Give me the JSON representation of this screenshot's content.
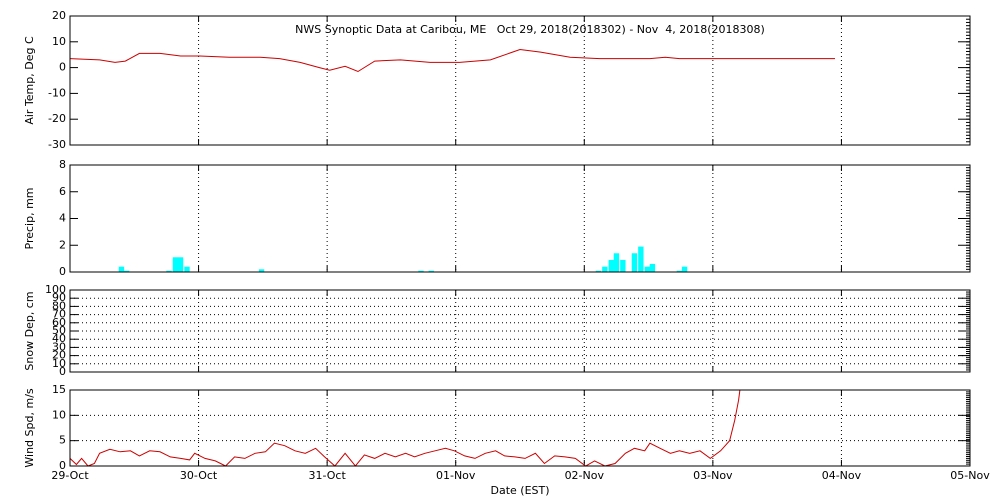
{
  "chart_data": [
    {
      "type": "line",
      "title": "NWS Synoptic Data at Caribou, ME   Oct 29, 2018(2018302) - Nov  4, 2018(2018308)",
      "ylabel": "Air Temp, Deg C",
      "color": "#cc0000",
      "x": [
        0,
        0.23,
        0.35,
        0.43,
        0.54,
        0.7,
        0.86,
        1.01,
        1.24,
        1.48,
        1.63,
        1.79,
        1.94,
        2.02,
        2.14,
        2.24,
        2.37,
        2.57,
        2.8,
        3.03,
        3.27,
        3.5,
        3.66,
        3.89,
        4.12,
        4.51,
        4.63,
        4.74,
        5.06,
        5.95
      ],
      "values": [
        3.5,
        3,
        2,
        2.5,
        5.5,
        5.5,
        4.5,
        4.5,
        4,
        4,
        3.5,
        2,
        0,
        -1,
        0.5,
        -1.5,
        2.5,
        3,
        2,
        2,
        3,
        7,
        6,
        4,
        3.5,
        3.5,
        4,
        3.5,
        3.5,
        3.5
      ],
      "xlim": [
        0,
        7
      ],
      "xticks": [
        0,
        1,
        2,
        3,
        4,
        5,
        6,
        7
      ],
      "ylim": [
        -30,
        20
      ],
      "yticks": [
        -30,
        -20,
        -10,
        0,
        10,
        20
      ],
      "ygrid": false
    },
    {
      "type": "bar",
      "ylabel": "Precip, mm",
      "color": "#00ffff",
      "x": [
        0.4,
        0.44,
        0.77,
        0.82,
        0.86,
        0.91,
        1.49,
        2.73,
        2.81,
        4.11,
        4.16,
        4.21,
        4.25,
        4.3,
        4.39,
        4.44,
        4.49,
        4.53,
        4.74,
        4.78
      ],
      "values": [
        0.4,
        0.1,
        0.1,
        1.1,
        1.1,
        0.4,
        0.2,
        0.1,
        0.1,
        0.1,
        0.4,
        0.9,
        1.4,
        0.9,
        1.4,
        1.9,
        0.4,
        0.6,
        0.1,
        0.4
      ],
      "xlim": [
        0,
        7
      ],
      "xticks": [
        0,
        1,
        2,
        3,
        4,
        5,
        6,
        7
      ],
      "ylim": [
        0,
        8
      ],
      "yticks": [
        0,
        2,
        4,
        6,
        8
      ],
      "ygrid": false
    },
    {
      "type": "line",
      "ylabel": "Snow Dep, cm",
      "xlim": [
        0,
        7
      ],
      "xticks": [
        0,
        1,
        2,
        3,
        4,
        5,
        6,
        7
      ],
      "ylim": [
        0,
        100
      ],
      "yticks": [
        0,
        10,
        20,
        30,
        40,
        50,
        60,
        70,
        80,
        90,
        100
      ],
      "ygrid": true
    },
    {
      "type": "line",
      "ylabel": "Wind Spd, m/s",
      "xlabel": "Date (EST)",
      "color": "#cc0000",
      "x": [
        0,
        0.05,
        0.09,
        0.14,
        0.19,
        0.23,
        0.31,
        0.39,
        0.47,
        0.54,
        0.62,
        0.7,
        0.78,
        0.86,
        0.93,
        0.97,
        1.05,
        1.13,
        1.21,
        1.28,
        1.36,
        1.44,
        1.52,
        1.59,
        1.67,
        1.75,
        1.83,
        1.91,
        1.98,
        2.06,
        2.14,
        2.22,
        2.29,
        2.37,
        2.45,
        2.53,
        2.61,
        2.68,
        2.76,
        2.84,
        2.92,
        2.99,
        3.07,
        3.15,
        3.23,
        3.31,
        3.38,
        3.46,
        3.54,
        3.62,
        3.69,
        3.77,
        3.85,
        3.93,
        4.01,
        4.08,
        4.16,
        4.24,
        4.32,
        4.39,
        4.47,
        4.51,
        4.59,
        4.67,
        4.74,
        4.82,
        4.9,
        4.98,
        5.06,
        5.13,
        5.17,
        5.2,
        5.21
      ],
      "values": [
        1.5,
        0.3,
        1.5,
        0,
        0.5,
        2.5,
        3.3,
        2.8,
        3,
        2,
        3,
        2.8,
        1.8,
        1.5,
        1.2,
        2.5,
        1.5,
        1,
        0,
        1.8,
        1.5,
        2.5,
        2.8,
        4.5,
        4,
        3,
        2.5,
        3.5,
        1.8,
        0,
        2.5,
        0,
        2.2,
        1.5,
        2.5,
        1.8,
        2.5,
        1.8,
        2.5,
        3,
        3.5,
        3,
        2,
        1.5,
        2.5,
        3,
        2,
        1.8,
        1.5,
        2.5,
        0.5,
        2,
        1.8,
        1.5,
        0,
        1,
        0,
        0.5,
        2.5,
        3.5,
        3,
        4.5,
        3.5,
        2.5,
        3,
        2.5,
        3,
        1.5,
        3,
        5,
        9,
        13,
        15
      ],
      "xlim": [
        0,
        7
      ],
      "xticks": [
        {
          "value": 0,
          "label": "29-Oct"
        },
        {
          "value": 1,
          "label": "30-Oct"
        },
        {
          "value": 2,
          "label": "31-Oct"
        },
        {
          "value": 3,
          "label": "01-Nov"
        },
        {
          "value": 4,
          "label": "02-Nov"
        },
        {
          "value": 5,
          "label": "03-Nov"
        },
        {
          "value": 6,
          "label": "04-Nov"
        },
        {
          "value": 7,
          "label": "05-Nov"
        }
      ],
      "ylim": [
        0,
        15
      ],
      "yticks": [
        0,
        5,
        10,
        15
      ],
      "ygrid": true
    }
  ]
}
